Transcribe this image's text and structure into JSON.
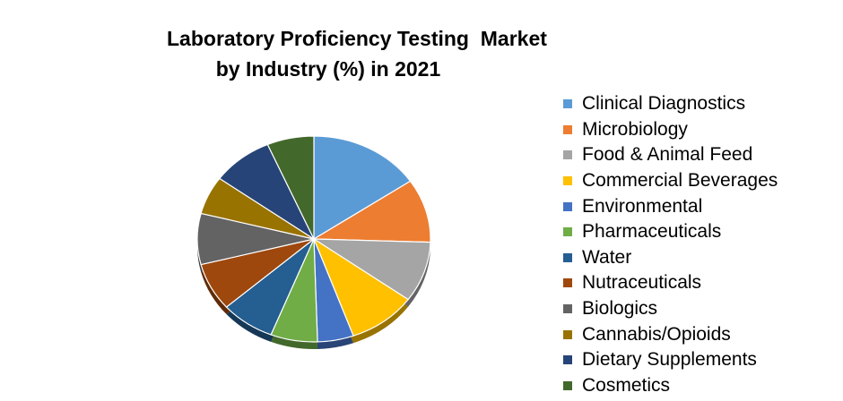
{
  "chart_data": {
    "type": "pie",
    "title_lines": [
      "Laboratory Proficiency Testing  Market",
      "by Industry (%) in 2021"
    ],
    "legend_position": "right",
    "categories": [
      "Clinical Diagnostics",
      "Microbiology",
      "Food & Animal Feed",
      "Commercial Beverages",
      "Environmental",
      "Pharmaceuticals",
      "Water",
      "Nutraceuticals",
      "Biologics",
      "Cannabis/Opioids",
      "Dietary Supplements",
      "Cosmetics"
    ],
    "values": [
      15.5,
      10,
      9.5,
      9.5,
      5,
      6.5,
      7.5,
      7.5,
      8,
      6,
      8.5,
      6.5
    ],
    "colors": [
      "#5B9BD5",
      "#ED7D31",
      "#A5A5A5",
      "#FFC000",
      "#4472C4",
      "#70AD47",
      "#255E91",
      "#9E480E",
      "#636363",
      "#997300",
      "#264478",
      "#43682B"
    ]
  }
}
